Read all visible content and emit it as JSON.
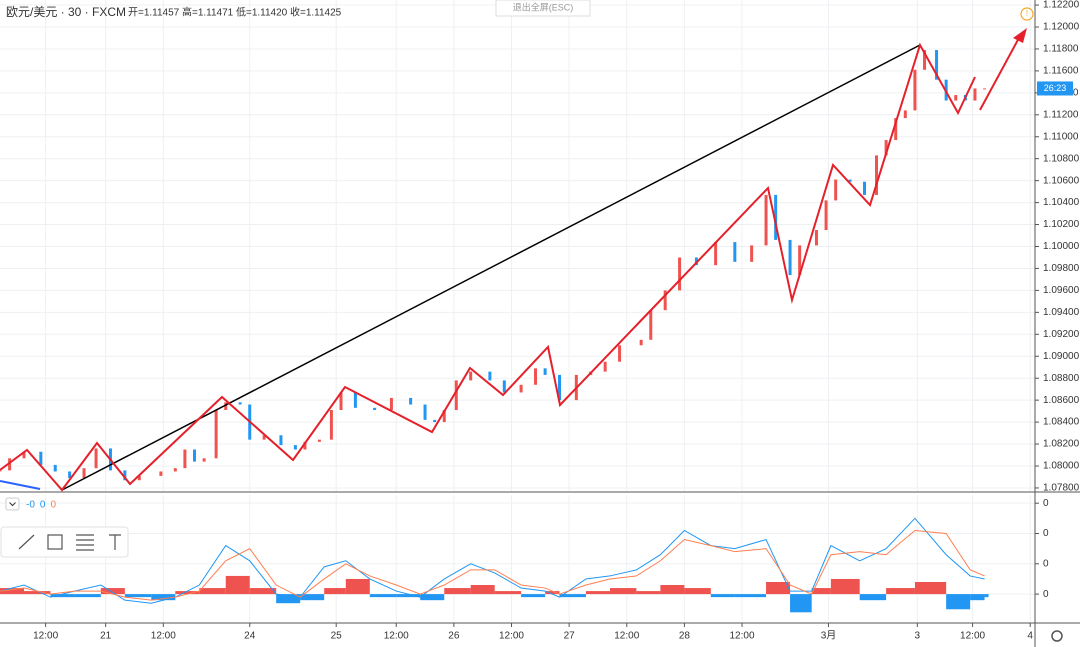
{
  "header": {
    "symbol": "欧元/美元 · 30 · FXCM",
    "ohlc": [
      "开=1.11457",
      "高=1.11471",
      "低=1.11420",
      "收=1.11425"
    ],
    "exit_button": "退出全屏(ESC)",
    "countdown": "26:23"
  },
  "chart_data": [
    {
      "type": "candlestick",
      "up_color": "#ef5350",
      "down_color": "#2196f3",
      "grid": true,
      "x": [
        0,
        4,
        10,
        17,
        23,
        29,
        35,
        40,
        46,
        52,
        58,
        67,
        73,
        77,
        81,
        85,
        90,
        94,
        100,
        104,
        110,
        117,
        123,
        127,
        133,
        138,
        142,
        148,
        156,
        163,
        171,
        177,
        181,
        185,
        190,
        196,
        204,
        210,
        217,
        223,
        227,
        233,
        240,
        246,
        252,
        258,
        267,
        271,
        277,
        283,
        290,
        298,
        306,
        313,
        319,
        323,
        329,
        333,
        340,
        344,
        348,
        354,
        360,
        365,
        369,
        373,
        377,
        381,
        385,
        390,
        394,
        398,
        402,
        406,
        410
      ],
      "values": [
        1.0796,
        1.0807,
        1.0813,
        1.0801,
        1.0795,
        1.0789,
        1.0798,
        1.0816,
        1.0796,
        1.0787,
        1.0791,
        1.0795,
        1.0798,
        1.0815,
        1.0804,
        1.0807,
        1.0851,
        1.0858,
        1.0856,
        1.0824,
        1.0828,
        1.0819,
        1.0815,
        1.0822,
        1.0824,
        1.0851,
        1.0867,
        1.0853,
        1.0851,
        1.0862,
        1.0856,
        1.0842,
        1.084,
        1.0851,
        1.0878,
        1.0886,
        1.0878,
        1.0867,
        1.0874,
        1.0889,
        1.0883,
        1.086,
        1.0883,
        1.0886,
        1.0895,
        1.091,
        1.0915,
        1.0942,
        1.096,
        1.099,
        1.0983,
        1.1004,
        1.0986,
        1.1001,
        1.1047,
        1.1006,
        1.0974,
        1.1001,
        1.1015,
        1.1042,
        1.1061,
        1.1059,
        1.1047,
        1.1083,
        1.1097,
        1.1117,
        1.1124,
        1.1161,
        1.1179,
        1.1152,
        1.1133,
        1.1138,
        1.1133,
        1.1144,
        1.1144
      ],
      "xlim": [
        0,
        431
      ],
      "ylim": [
        1.07763,
        1.12246
      ],
      "yticks": [
        {
          "value": 1.078,
          "label": "1.07800"
        },
        {
          "value": 1.08,
          "label": "1.08000"
        },
        {
          "value": 1.082,
          "label": "1.08200"
        },
        {
          "value": 1.084,
          "label": "1.08400"
        },
        {
          "value": 1.086,
          "label": "1.08600"
        },
        {
          "value": 1.088,
          "label": "1.08800"
        },
        {
          "value": 1.09,
          "label": "1.09000"
        },
        {
          "value": 1.092,
          "label": "1.09200"
        },
        {
          "value": 1.094,
          "label": "1.09400"
        },
        {
          "value": 1.096,
          "label": "1.09600"
        },
        {
          "value": 1.098,
          "label": "1.09800"
        },
        {
          "value": 1.1,
          "label": "1.10000"
        },
        {
          "value": 1.102,
          "label": "1.10200"
        },
        {
          "value": 1.104,
          "label": "1.10400"
        },
        {
          "value": 1.106,
          "label": "1.10600"
        },
        {
          "value": 1.108,
          "label": "1.10800"
        },
        {
          "value": 1.11,
          "label": "1.11000"
        },
        {
          "value": 1.112,
          "label": "1.11200"
        },
        {
          "value": 1.114,
          "label": "1.11400"
        },
        {
          "value": 1.116,
          "label": "1.11600"
        },
        {
          "value": 1.118,
          "label": "1.11800"
        },
        {
          "value": 1.12,
          "label": "1.12000"
        },
        {
          "value": 1.122,
          "label": "1.12200"
        }
      ],
      "xticks": [
        {
          "value": 19,
          "label": "12:00"
        },
        {
          "value": 44,
          "label": "21"
        },
        {
          "value": 68,
          "label": "12:00"
        },
        {
          "value": 104,
          "label": "24"
        },
        {
          "value": 140,
          "label": "25"
        },
        {
          "value": 165,
          "label": "12:00"
        },
        {
          "value": 189,
          "label": "26"
        },
        {
          "value": 213,
          "label": "12:00"
        },
        {
          "value": 237,
          "label": "27"
        },
        {
          "value": 261,
          "label": "12:00"
        },
        {
          "value": 285,
          "label": "28"
        },
        {
          "value": 309,
          "label": "12:00"
        },
        {
          "value": 345,
          "label": "3月"
        },
        {
          "value": 382,
          "label": "3"
        },
        {
          "value": 405,
          "label": "12:00"
        },
        {
          "value": 429,
          "label": "4"
        }
      ]
    },
    {
      "type": "macd",
      "indicator_values": [
        "-0",
        "0",
        "0"
      ],
      "legend_colors": [
        "#2196f3",
        "#2196f3",
        "#ff7f50"
      ],
      "pos_color": "#ef5350",
      "neg_color": "#2196f3",
      "x": [
        0,
        10,
        21,
        31,
        42,
        52,
        63,
        73,
        83,
        94,
        104,
        115,
        125,
        135,
        144,
        154,
        165,
        175,
        185,
        196,
        206,
        217,
        227,
        233,
        244,
        254,
        265,
        275,
        285,
        296,
        306,
        319,
        329,
        338,
        346,
        358,
        369,
        381,
        394,
        404,
        410
      ],
      "histogram": [
        0.0002,
        0.0001,
        -0.0001,
        -0.0001,
        0.0002,
        -0.0001,
        -0.0002,
        0.0001,
        0.0002,
        0.0006,
        0.0002,
        -0.0003,
        -0.0002,
        0.0002,
        0.0005,
        -0.0001,
        -0.0001,
        -0.0002,
        0.0002,
        0.0003,
        0.0001,
        -0.0001,
        0.0001,
        -0.0001,
        0.0001,
        0.0002,
        0.0001,
        0.0003,
        0.0002,
        -0.0001,
        -0.0001,
        0.0004,
        -0.0006,
        0.0002,
        0.0005,
        -0.0002,
        0.0002,
        0.0004,
        -0.0005,
        -0.0002,
        -0.0001
      ],
      "lines": [
        {
          "color": "#2196f3",
          "values": [
            0.0001,
            0.0003,
            -0.0001,
            0.0001,
            0.0003,
            -0.0002,
            -0.0003,
            -0.0001,
            0.0003,
            0.0016,
            0.0011,
            0,
            -0.0001,
            0.0009,
            0.0011,
            0.0005,
            0.0001,
            -0.0001,
            0.0005,
            0.001,
            0.0007,
            0.0002,
            0.0001,
            -0.0001,
            0.0005,
            0.0006,
            0.0008,
            0.0013,
            0.0021,
            0.0016,
            0.0015,
            0.0018,
            0.0001,
            0.0001,
            0.0016,
            0.0011,
            0.0015,
            0.0025,
            0.0013,
            0.0006,
            0.0005
          ]
        },
        {
          "color": "#ff7f50",
          "values": [
            0.0001,
            0.0002,
            0,
            0.0001,
            0.0001,
            -0.0001,
            -0.0002,
            -0.0001,
            0.0001,
            0.0011,
            0.0015,
            0.0003,
            -0.0001,
            0.0005,
            0.001,
            0.0006,
            0.0003,
            0,
            0.0003,
            0.0008,
            0.0008,
            0.0003,
            0.0002,
            0,
            0.0003,
            0.0005,
            0.0006,
            0.0011,
            0.0018,
            0.0016,
            0.0014,
            0.0015,
            0.0003,
            0,
            0.0013,
            0.0014,
            0.0013,
            0.0021,
            0.002,
            0.0008,
            0.0006
          ]
        }
      ],
      "xlim": [
        0,
        431
      ],
      "ylim": [
        -0.00092,
        0.00327
      ],
      "yticks": [
        {
          "value": 0.003,
          "label": "0"
        },
        {
          "value": 0.002,
          "label": "0"
        },
        {
          "value": 0.001,
          "label": "0"
        },
        0
      ]
    }
  ]
}
